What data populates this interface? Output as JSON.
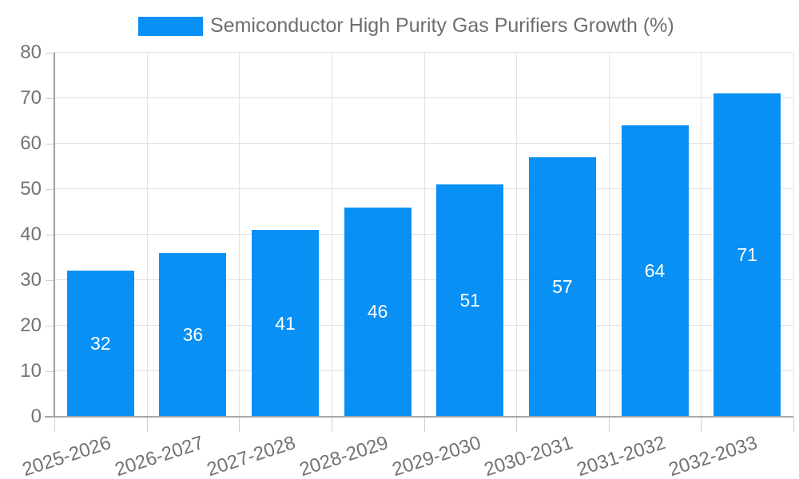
{
  "chart_data": {
    "type": "bar",
    "title": "Semiconductor High Purity Gas Purifiers Growth (%)",
    "categories": [
      "2025-2026",
      "2026-2027",
      "2027-2028",
      "2028-2029",
      "2029-2030",
      "2030-2031",
      "2031-2032",
      "2032-2033"
    ],
    "series": [
      {
        "name": "Semiconductor High Purity Gas Purifiers Growth (%)",
        "values": [
          32,
          36,
          41,
          46,
          51,
          57,
          64,
          71
        ]
      }
    ],
    "value_labels": [
      "32",
      "36",
      "41",
      "46",
      "51",
      "57",
      "64",
      "71"
    ],
    "xlabel": "",
    "ylabel": "",
    "ylim": [
      0,
      80
    ],
    "yticks": [
      0,
      10,
      20,
      30,
      40,
      50,
      60,
      70,
      80
    ],
    "grid": "on",
    "legend_position": "top",
    "bar_color": "#0990f5",
    "value_label_color": "#ffffff",
    "axis_text_color": "#737373",
    "title_color": "#6e6e6e",
    "grid_color": "#e0e0e0",
    "axis_line_color": "#9e9e9e"
  }
}
